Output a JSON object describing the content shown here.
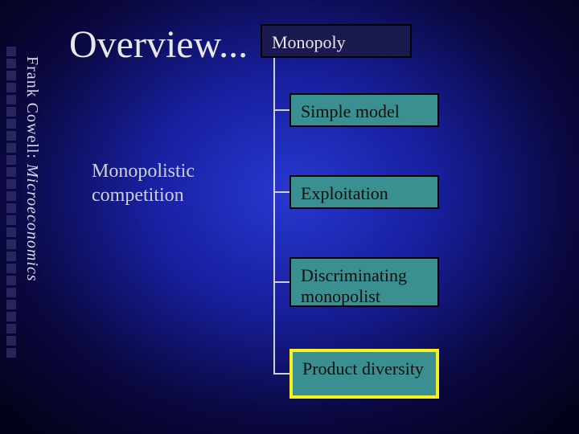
{
  "title": "Overview...",
  "subtitle_line1": "Monopolistic",
  "subtitle_line2": "competition",
  "sidebar_label_normal": "Frank Cowell: ",
  "sidebar_label_italic": "Microeconomics",
  "diagram": {
    "type": "tree",
    "root": {
      "label": "Monopoly",
      "bg": "#1a1a50",
      "fg": "#e8e8e8",
      "border": "#000000"
    },
    "children": [
      {
        "label": "Simple model",
        "bg": "#3a9090",
        "fg": "#101010",
        "border": "#000000",
        "highlight": false
      },
      {
        "label": "Exploitation",
        "bg": "#3a9090",
        "fg": "#101010",
        "border": "#000000",
        "highlight": false
      },
      {
        "label": "Discriminating monopolist",
        "bg": "#3a9090",
        "fg": "#101010",
        "border": "#000000",
        "highlight": false
      },
      {
        "label": "Product diversity",
        "bg": "#3a9090",
        "fg": "#101010",
        "border": "#f8f020",
        "highlight": true
      }
    ],
    "connector_color": "#d0d0d0"
  },
  "style": {
    "background_gradient": {
      "center": "#2838d0",
      "mid": "#1820a0",
      "outer": "#0a0840",
      "edge": "#020218"
    },
    "title_color": "#e8e8e8",
    "title_fontsize": 48,
    "subtitle_color": "#d0d0d0",
    "subtitle_fontsize": 24,
    "box_fontsize": 22,
    "sidebar_color": "#d8d8f0",
    "sidebar_fontsize": 20,
    "sidebar_square_color": "#3a3a78",
    "sidebar_square_count": 26,
    "font_family": "Georgia, Times New Roman, serif"
  }
}
